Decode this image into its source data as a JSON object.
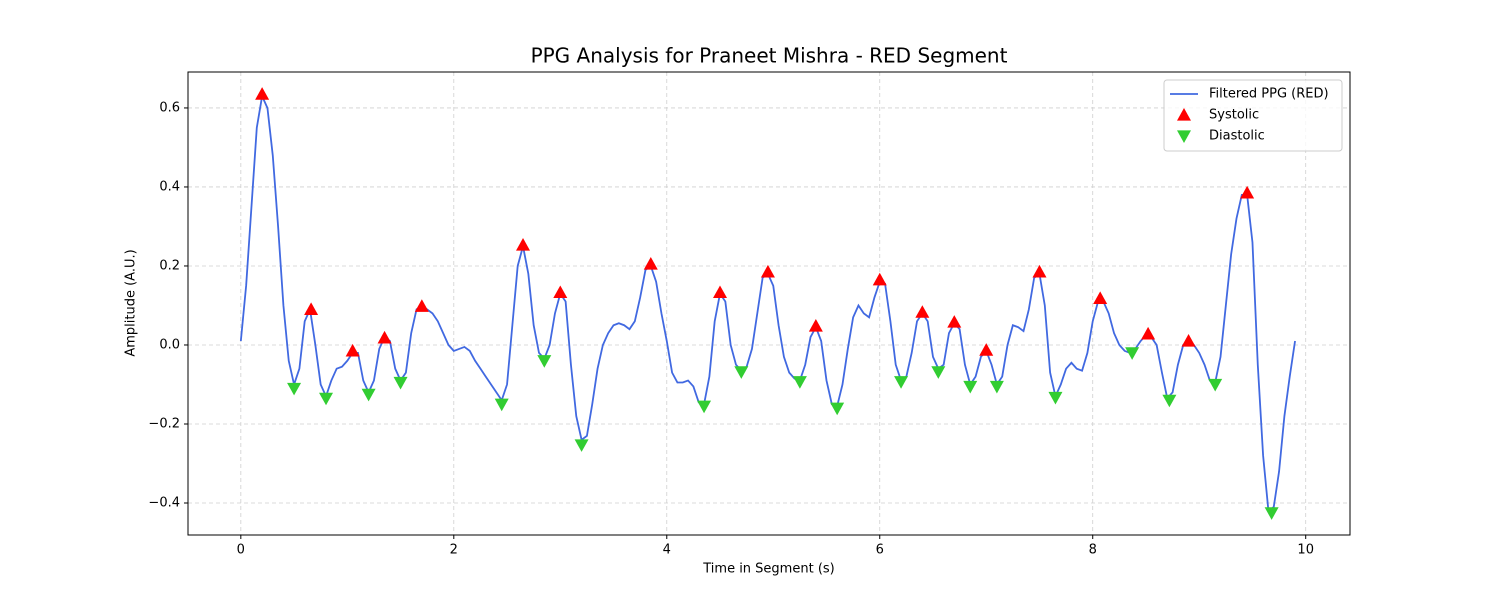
{
  "chart_data": {
    "type": "line",
    "title": "PPG Analysis for Praneet Mishra - RED Segment",
    "x_label": "Time in Segment (s)",
    "y_label": "Amplitude (A.U.)",
    "xlim": [
      -0.496,
      10.416
    ],
    "ylim": [
      -0.481,
      0.691
    ],
    "xticks": [
      0,
      2,
      4,
      6,
      8,
      10
    ],
    "yticks": [
      {
        "value": -0.4,
        "label": "−0.4"
      },
      {
        "value": -0.2,
        "label": "−0.2"
      },
      {
        "value": 0,
        "label": "0.0"
      },
      0.2,
      0.4,
      0.6
    ],
    "grid": true,
    "legend": "upper right",
    "series": [
      {
        "name": "Filtered PPG (RED)",
        "type": "line",
        "color": "#4169e1",
        "x": [
          0,
          0.05,
          0.1,
          0.15,
          0.2,
          0.25,
          0.3,
          0.35,
          0.4,
          0.45,
          0.5,
          0.55,
          0.6,
          0.65,
          0.7,
          0.75,
          0.8,
          0.85,
          0.9,
          0.95,
          1.0,
          1.05,
          1.1,
          1.15,
          1.2,
          1.25,
          1.3,
          1.35,
          1.4,
          1.45,
          1.5,
          1.55,
          1.6,
          1.65,
          1.7,
          1.75,
          1.8,
          1.85,
          1.9,
          1.95,
          2.0,
          2.05,
          2.1,
          2.15,
          2.2,
          2.25,
          2.3,
          2.35,
          2.4,
          2.45,
          2.5,
          2.55,
          2.6,
          2.65,
          2.7,
          2.75,
          2.8,
          2.85,
          2.9,
          2.95,
          3.0,
          3.05,
          3.1,
          3.15,
          3.2,
          3.25,
          3.3,
          3.35,
          3.4,
          3.45,
          3.5,
          3.55,
          3.6,
          3.65,
          3.7,
          3.75,
          3.8,
          3.85,
          3.9,
          3.95,
          4.0,
          4.05,
          4.1,
          4.15,
          4.2,
          4.25,
          4.3,
          4.35,
          4.4,
          4.45,
          4.5,
          4.55,
          4.6,
          4.65,
          4.7,
          4.75,
          4.8,
          4.85,
          4.9,
          4.95,
          5.0,
          5.05,
          5.1,
          5.15,
          5.2,
          5.25,
          5.3,
          5.35,
          5.4,
          5.45,
          5.5,
          5.55,
          5.6,
          5.65,
          5.7,
          5.75,
          5.8,
          5.85,
          5.9,
          5.95,
          6.0,
          6.05,
          6.1,
          6.15,
          6.2,
          6.25,
          6.3,
          6.35,
          6.4,
          6.45,
          6.5,
          6.55,
          6.6,
          6.65,
          6.7,
          6.75,
          6.8,
          6.85,
          6.9,
          6.95,
          7.0,
          7.05,
          7.1,
          7.15,
          7.2,
          7.25,
          7.3,
          7.35,
          7.4,
          7.45,
          7.5,
          7.55,
          7.6,
          7.65,
          7.7,
          7.75,
          7.8,
          7.85,
          7.9,
          7.95,
          8.0,
          8.05,
          8.1,
          8.15,
          8.2,
          8.25,
          8.3,
          8.35,
          8.4,
          8.45,
          8.5,
          8.55,
          8.6,
          8.65,
          8.7,
          8.75,
          8.8,
          8.85,
          8.9,
          8.95,
          9.0,
          9.05,
          9.1,
          9.15,
          9.2,
          9.25,
          9.3,
          9.35,
          9.4,
          9.45,
          9.5,
          9.55,
          9.6,
          9.65,
          9.7,
          9.75,
          9.8,
          9.85,
          9.9
        ],
        "values": [
          0.01,
          0.15,
          0.35,
          0.55,
          0.63,
          0.6,
          0.48,
          0.3,
          0.1,
          -0.04,
          -0.1,
          -0.06,
          0.06,
          0.09,
          0.0,
          -0.1,
          -0.13,
          -0.09,
          -0.06,
          -0.055,
          -0.04,
          -0.02,
          -0.02,
          -0.09,
          -0.12,
          -0.09,
          -0.01,
          0.02,
          0.01,
          -0.06,
          -0.09,
          -0.07,
          0.03,
          0.09,
          0.1,
          0.09,
          0.08,
          0.06,
          0.03,
          0.0,
          -0.015,
          -0.01,
          -0.005,
          -0.015,
          -0.04,
          -0.06,
          -0.08,
          -0.1,
          -0.12,
          -0.14,
          -0.1,
          0.05,
          0.2,
          0.25,
          0.18,
          0.05,
          -0.02,
          -0.035,
          0.0,
          0.08,
          0.13,
          0.11,
          -0.05,
          -0.18,
          -0.24,
          -0.23,
          -0.15,
          -0.06,
          0.0,
          0.03,
          0.05,
          0.055,
          0.05,
          0.04,
          0.06,
          0.12,
          0.19,
          0.2,
          0.16,
          0.08,
          0.01,
          -0.07,
          -0.095,
          -0.095,
          -0.09,
          -0.105,
          -0.145,
          -0.15,
          -0.08,
          0.06,
          0.13,
          0.11,
          0.0,
          -0.05,
          -0.065,
          -0.055,
          -0.01,
          0.08,
          0.17,
          0.18,
          0.15,
          0.05,
          -0.03,
          -0.07,
          -0.085,
          -0.09,
          -0.05,
          0.02,
          0.045,
          0.01,
          -0.09,
          -0.15,
          -0.155,
          -0.1,
          -0.01,
          0.07,
          0.1,
          0.08,
          0.07,
          0.12,
          0.16,
          0.155,
          0.06,
          -0.05,
          -0.09,
          -0.08,
          -0.02,
          0.06,
          0.08,
          0.06,
          -0.03,
          -0.06,
          -0.05,
          0.03,
          0.055,
          0.04,
          -0.05,
          -0.1,
          -0.08,
          -0.03,
          -0.015,
          -0.05,
          -0.1,
          -0.08,
          0.0,
          0.05,
          0.045,
          0.035,
          0.09,
          0.17,
          0.18,
          0.1,
          -0.07,
          -0.13,
          -0.1,
          -0.06,
          -0.045,
          -0.06,
          -0.065,
          -0.02,
          0.06,
          0.11,
          0.11,
          0.08,
          0.03,
          0.0,
          -0.015,
          -0.02,
          -0.01,
          0.01,
          0.025,
          0.02,
          0.0,
          -0.07,
          -0.135,
          -0.12,
          -0.05,
          0.0,
          0.005,
          0.0,
          -0.02,
          -0.05,
          -0.09,
          -0.095,
          -0.03,
          0.1,
          0.23,
          0.32,
          0.38,
          0.38,
          0.26,
          -0.05,
          -0.28,
          -0.42,
          -0.41,
          -0.32,
          -0.18,
          -0.08,
          0.01
        ]
      },
      {
        "name": "Systolic",
        "type": "scatter",
        "marker": "triangle-up",
        "color": "#ff0000",
        "x": [
          0.2,
          0.66,
          1.05,
          1.35,
          1.7,
          2.65,
          3.0,
          3.85,
          4.5,
          4.95,
          5.4,
          6.0,
          6.4,
          6.7,
          7.0,
          7.5,
          8.07,
          8.52,
          8.9,
          9.45
        ],
        "values": [
          0.635,
          0.09,
          -0.015,
          0.018,
          0.098,
          0.253,
          0.133,
          0.205,
          0.133,
          0.185,
          0.048,
          0.165,
          0.083,
          0.058,
          -0.013,
          0.185,
          0.118,
          0.028,
          0.01,
          0.385
        ]
      },
      {
        "name": "Diastolic",
        "type": "scatter",
        "marker": "triangle-down",
        "color": "#32cd32",
        "x": [
          0.5,
          0.8,
          1.2,
          1.5,
          2.45,
          2.85,
          3.2,
          4.35,
          4.7,
          5.25,
          5.6,
          6.2,
          6.55,
          6.85,
          7.1,
          7.65,
          8.37,
          8.72,
          9.15,
          9.68
        ],
        "values": [
          -0.11,
          -0.135,
          -0.125,
          -0.095,
          -0.15,
          -0.04,
          -0.253,
          -0.155,
          -0.068,
          -0.093,
          -0.16,
          -0.093,
          -0.068,
          -0.105,
          -0.105,
          -0.133,
          -0.02,
          -0.14,
          -0.1,
          -0.425
        ]
      }
    ]
  }
}
